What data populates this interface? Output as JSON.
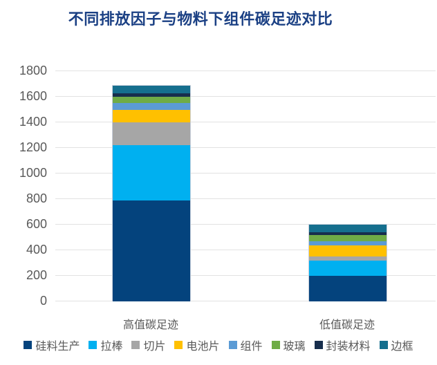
{
  "chart_data": {
    "type": "bar",
    "stacked": true,
    "title": "不同排放因子与物料下组件碳足迹对比",
    "categories": [
      "高值碳足迹",
      "低值碳足迹"
    ],
    "series": [
      {
        "name": "硅料生产",
        "color": "#04437D",
        "values": [
          790,
          200
        ]
      },
      {
        "name": "拉棒",
        "color": "#00B0F0",
        "values": [
          430,
          120
        ]
      },
      {
        "name": "切片",
        "color": "#A6A6A6",
        "values": [
          180,
          30
        ]
      },
      {
        "name": "电池片",
        "color": "#FFC000",
        "values": [
          95,
          90
        ]
      },
      {
        "name": "组件",
        "color": "#5B9BD5",
        "values": [
          55,
          30
        ]
      },
      {
        "name": "玻璃",
        "color": "#6FAC46",
        "values": [
          50,
          50
        ]
      },
      {
        "name": "封装材料",
        "color": "#172E4D",
        "values": [
          25,
          20
        ]
      },
      {
        "name": "边框",
        "color": "#156F8E",
        "values": [
          60,
          60
        ]
      }
    ],
    "totals": [
      1685,
      600
    ],
    "ylim": [
      0,
      1800
    ],
    "ytick_step": 200,
    "yticks": [
      0,
      200,
      400,
      600,
      800,
      1000,
      1200,
      1400,
      1600,
      1800
    ],
    "grid": true,
    "legend_position": "bottom",
    "colors": {
      "title": "#1B4084",
      "axis_text": "#595959",
      "gridline": "#E2E2E2"
    }
  }
}
